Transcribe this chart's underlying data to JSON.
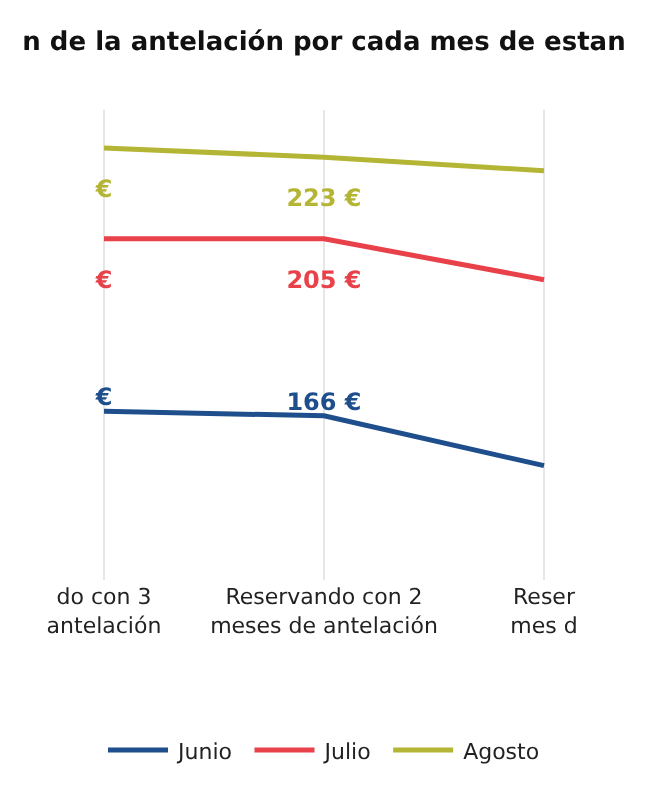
{
  "chart_data": {
    "type": "line",
    "title": "n de la antelación por cada mes de estan",
    "categories": [
      "do con 3\nantelación",
      "Reservando con 2\nmeses de antelación",
      "Reser\nmes d"
    ],
    "series": [
      {
        "name": "Junio",
        "color": "#1f4e8c",
        "values": [
          167,
          166,
          155
        ],
        "value_labels": [
          "€",
          "166 €",
          null
        ]
      },
      {
        "name": "Julio",
        "color": "#e8414a",
        "values": [
          205,
          205,
          196
        ],
        "value_labels": [
          "€",
          "205 €",
          null
        ]
      },
      {
        "name": "Agosto",
        "color": "#b5b535",
        "values": [
          225,
          223,
          220
        ],
        "value_labels": [
          "€",
          "223 €",
          null
        ]
      }
    ],
    "grid": "x",
    "legend": "bottom",
    "marker": "none",
    "line_style": "solid"
  }
}
